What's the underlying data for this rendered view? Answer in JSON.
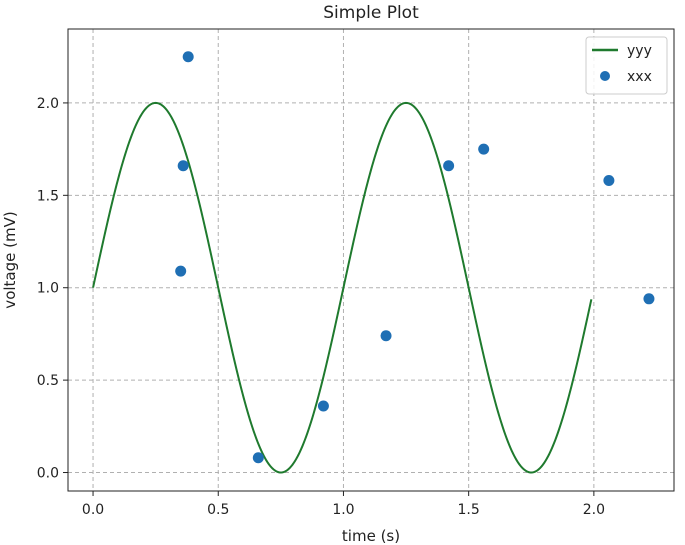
{
  "chart_data": {
    "type": "line",
    "title": "Simple Plot",
    "xlabel": "time (s)",
    "ylabel": "voltage (mV)",
    "xlim": [
      -0.1,
      2.32
    ],
    "ylim": [
      -0.1,
      2.4
    ],
    "xticks": [
      0.0,
      0.5,
      1.0,
      1.5,
      2.0
    ],
    "xtick_labels": [
      "0.0",
      "0.5",
      "1.0",
      "1.5",
      "2.0"
    ],
    "yticks": [
      0.0,
      0.5,
      1.0,
      1.5,
      2.0
    ],
    "ytick_labels": [
      "0.0",
      "0.5",
      "1.0",
      "1.5",
      "2.0"
    ],
    "grid": true,
    "grid_style": "dashed",
    "legend_position": "top-right",
    "series": [
      {
        "name": "yyy",
        "type": "line",
        "color": "#1f7a2e",
        "function": "1 + sin(2*pi*t)",
        "x_range": [
          0.0,
          1.99
        ],
        "x": [
          0.0,
          0.125,
          0.25,
          0.375,
          0.5,
          0.625,
          0.75,
          0.875,
          1.0,
          1.125,
          1.25,
          1.375,
          1.5,
          1.625,
          1.75,
          1.875,
          1.99
        ],
        "y": [
          1.0,
          1.71,
          2.0,
          1.71,
          1.0,
          0.29,
          0.0,
          0.29,
          1.0,
          1.71,
          2.0,
          1.71,
          1.0,
          0.29,
          0.0,
          0.29,
          0.94
        ]
      },
      {
        "name": "xxx",
        "type": "scatter",
        "color": "#1f6fb4",
        "x": [
          0.35,
          0.36,
          0.38,
          0.66,
          0.92,
          1.17,
          1.42,
          1.56,
          2.06,
          2.22
        ],
        "y": [
          1.09,
          1.66,
          2.25,
          0.08,
          0.36,
          0.74,
          1.66,
          1.75,
          1.58,
          0.94
        ]
      }
    ]
  }
}
